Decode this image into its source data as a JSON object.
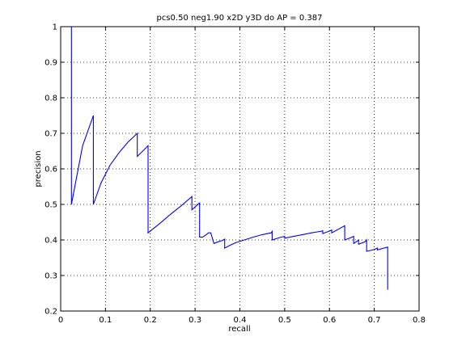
{
  "chart_data": {
    "type": "line",
    "title": "pcs0.50 neg1.90 x2D y3D do AP = 0.387",
    "xlabel": "recall",
    "ylabel": "precision",
    "xlim": [
      0,
      0.8
    ],
    "ylim": [
      0.2,
      1
    ],
    "xticks": [
      0,
      0.1,
      0.2,
      0.3,
      0.4,
      0.5,
      0.6,
      0.7,
      0.8
    ],
    "xtick_labels": [
      "0",
      "0.1",
      "0.2",
      "0.3",
      "0.4",
      "0.5",
      "0.6",
      "0.7",
      "0.8"
    ],
    "yticks": [
      0.2,
      0.3,
      0.4,
      0.5,
      0.6,
      0.7,
      0.8,
      0.9,
      1
    ],
    "ytick_labels": [
      "0.2",
      "0.3",
      "0.4",
      "0.5",
      "0.6",
      "0.7",
      "0.8",
      "0.9",
      "1"
    ],
    "grid": true,
    "line_color": "#0000ff",
    "series": [
      {
        "x": [
          0.024,
          0.024,
          0.024,
          0.049,
          0.073,
          0.073,
          0.09,
          0.11,
          0.13,
          0.15,
          0.171,
          0.171,
          0.195,
          0.195,
          0.22,
          0.245,
          0.27,
          0.293,
          0.293,
          0.31,
          0.31,
          0.317,
          0.317,
          0.325,
          0.33,
          0.335,
          0.342,
          0.342,
          0.352,
          0.36,
          0.366,
          0.366,
          0.378,
          0.39,
          0.39,
          0.41,
          0.43,
          0.45,
          0.47,
          0.472,
          0.472,
          0.49,
          0.5,
          0.5,
          0.52,
          0.54,
          0.56,
          0.58,
          0.585,
          0.585,
          0.6,
          0.605,
          0.605,
          0.634,
          0.634,
          0.645,
          0.654,
          0.654,
          0.66,
          0.665,
          0.665,
          0.68,
          0.683,
          0.683,
          0.7,
          0.707,
          0.707,
          0.73,
          0.73
        ],
        "y": [
          1.0,
          0.5,
          0.5,
          0.665,
          0.75,
          0.5,
          0.56,
          0.61,
          0.645,
          0.675,
          0.7,
          0.635,
          0.665,
          0.42,
          0.445,
          0.472,
          0.497,
          0.522,
          0.485,
          0.504,
          0.408,
          0.408,
          0.408,
          0.415,
          0.42,
          0.42,
          0.39,
          0.39,
          0.395,
          0.398,
          0.402,
          0.377,
          0.385,
          0.392,
          0.392,
          0.4,
          0.408,
          0.415,
          0.42,
          0.424,
          0.4,
          0.407,
          0.41,
          0.405,
          0.41,
          0.415,
          0.42,
          0.424,
          0.426,
          0.418,
          0.425,
          0.428,
          0.42,
          0.44,
          0.4,
          0.405,
          0.41,
          0.39,
          0.395,
          0.4,
          0.388,
          0.395,
          0.4,
          0.368,
          0.373,
          0.377,
          0.372,
          0.38,
          0.26
        ]
      }
    ]
  }
}
